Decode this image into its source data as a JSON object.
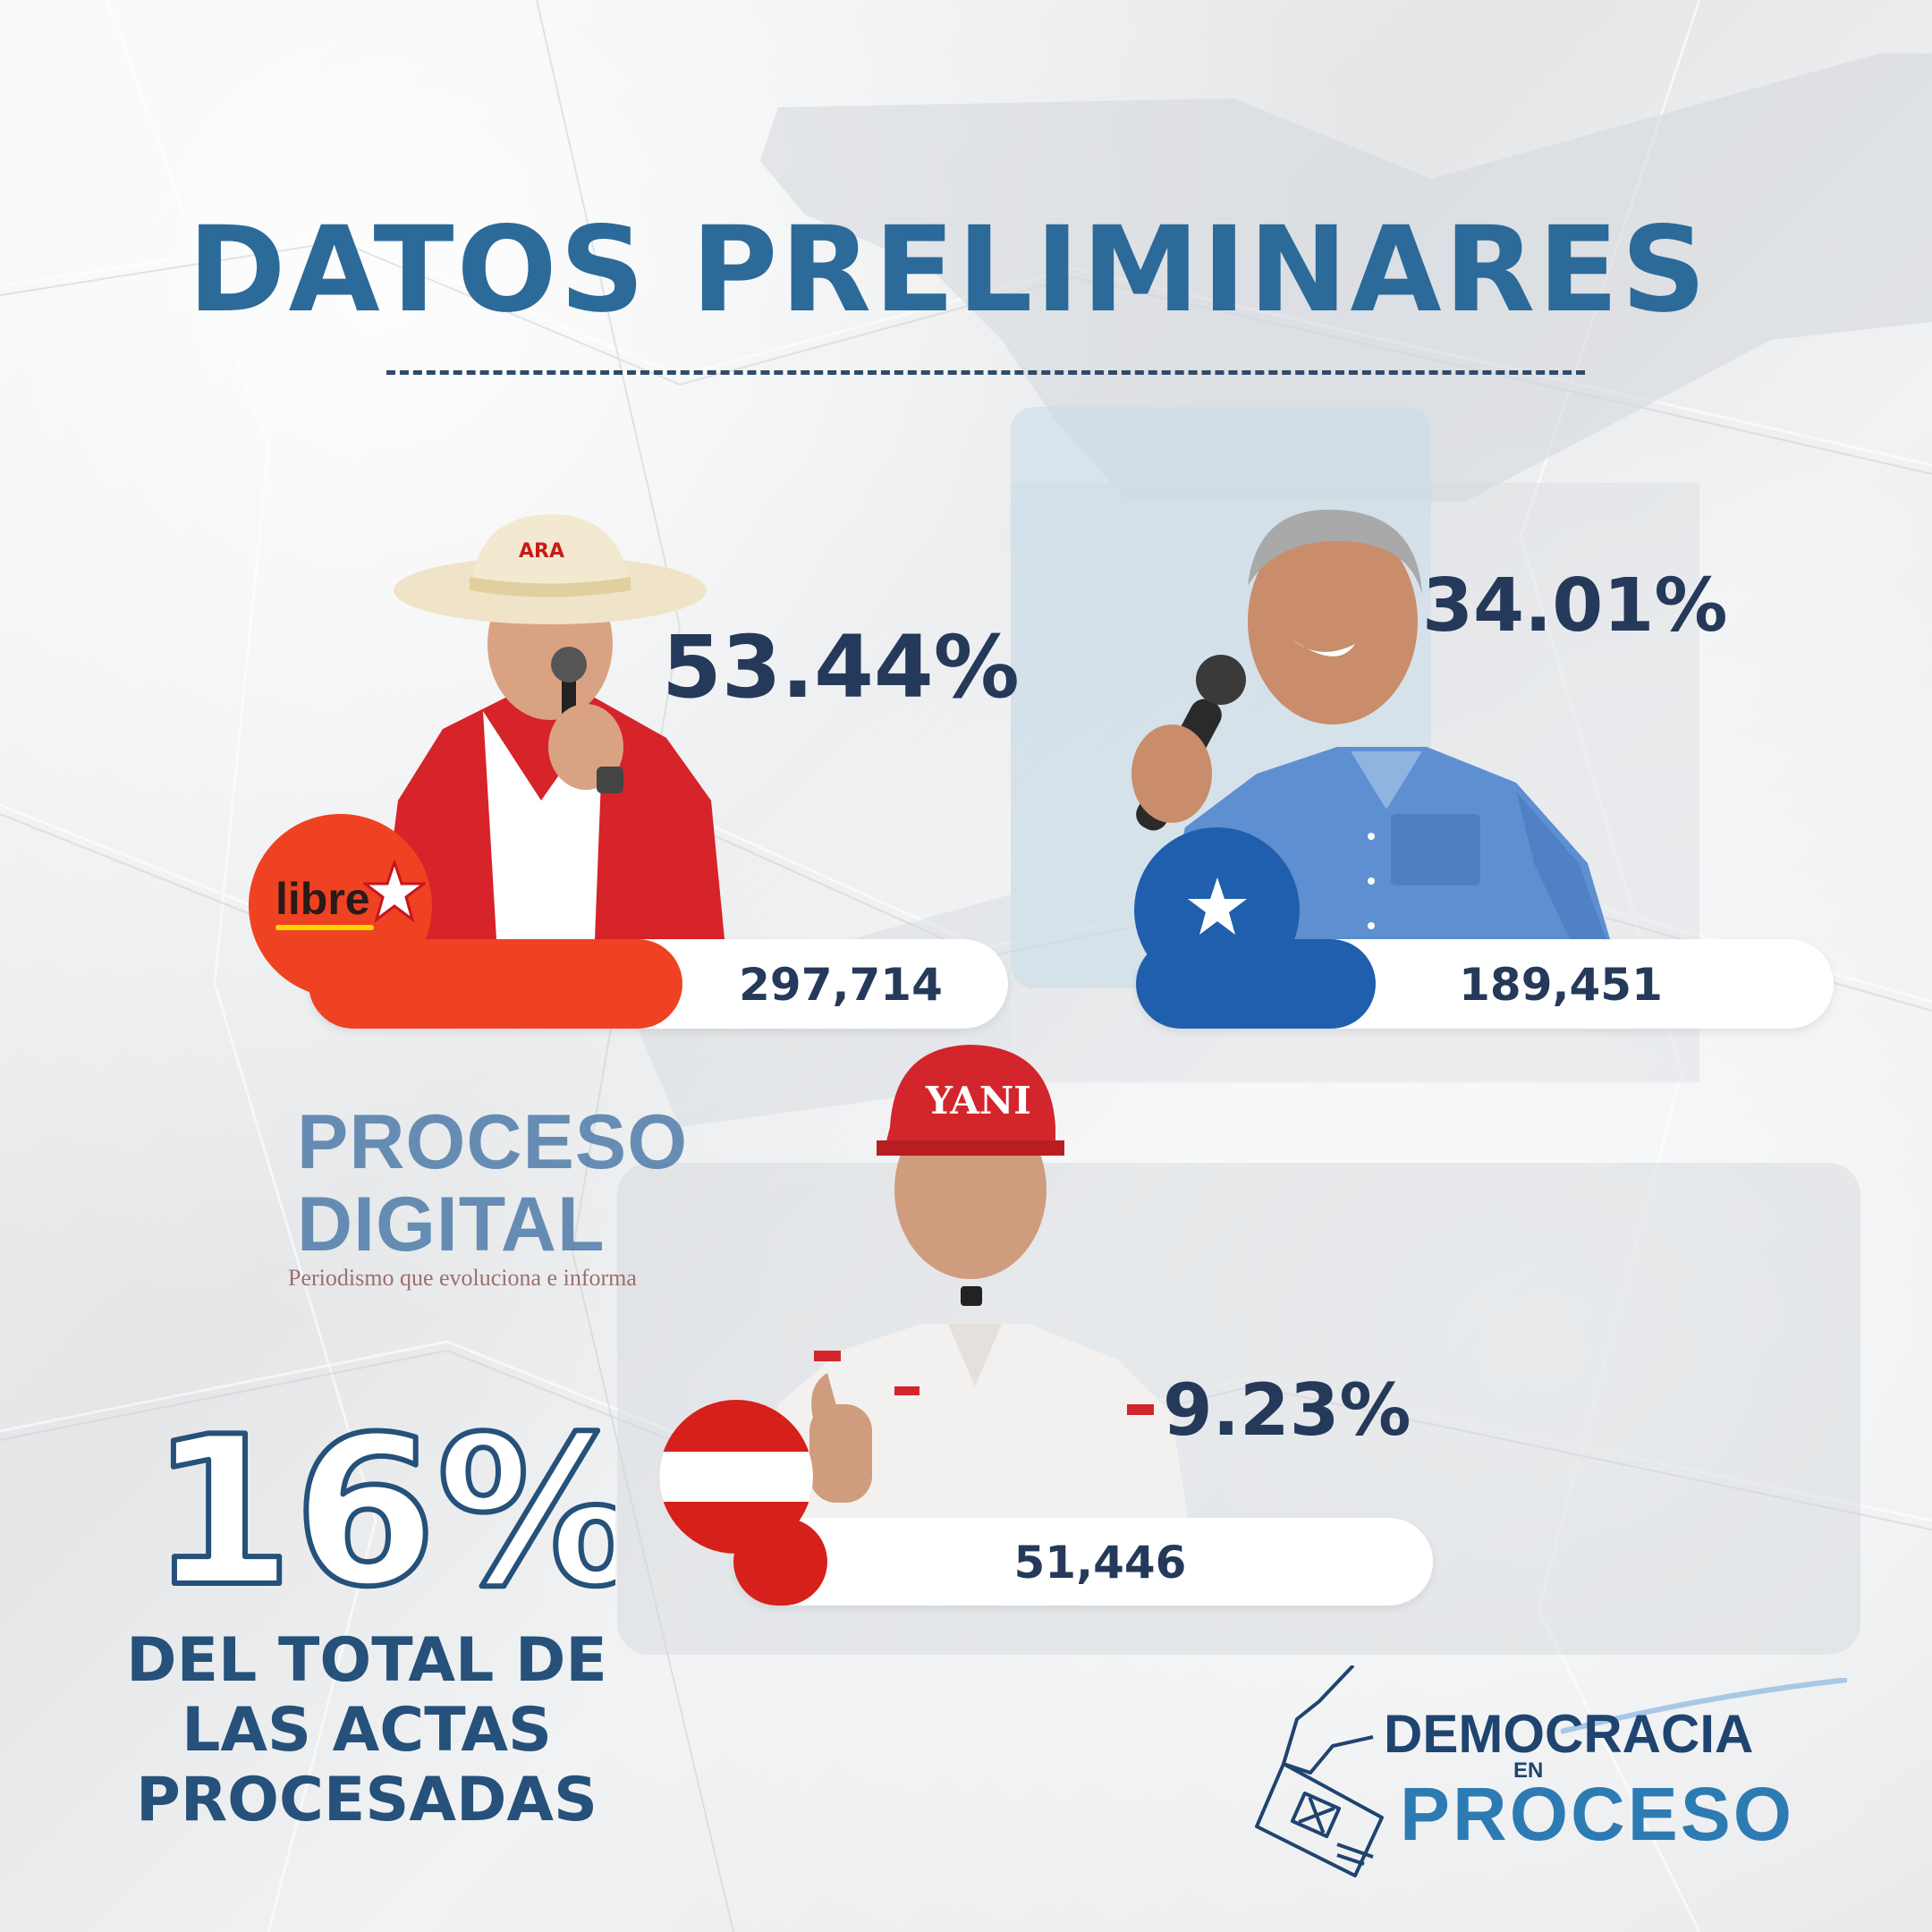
{
  "title": "DATOS PRELIMINARES",
  "candidates": [
    {
      "id": "libre",
      "percent": "53.44%",
      "votes": "297,714",
      "party_logo_text": "libre",
      "color": "#ee4223"
    },
    {
      "id": "nacional",
      "percent": "34.01%",
      "votes": "189,451",
      "color": "#1f5fae"
    },
    {
      "id": "liberal",
      "percent": "9.23%",
      "votes": "51,446",
      "cap_text": "YANI",
      "color": "#d6201b"
    }
  ],
  "watermark": {
    "line1": "PROCESO",
    "line2": "DIGITAL",
    "tagline": "Periodismo que evoluciona e informa"
  },
  "progress": {
    "value": "16%",
    "caption_lines": [
      "DEL TOTAL DE",
      "LAS ACTAS",
      "PROCESADAS"
    ]
  },
  "brand": {
    "line1": "DEMOCRACIA",
    "line2": "EN",
    "line3": "PROCESO"
  },
  "colors": {
    "title": "#2c6a99",
    "text_dark": "#25395a",
    "caption": "#25517a"
  }
}
